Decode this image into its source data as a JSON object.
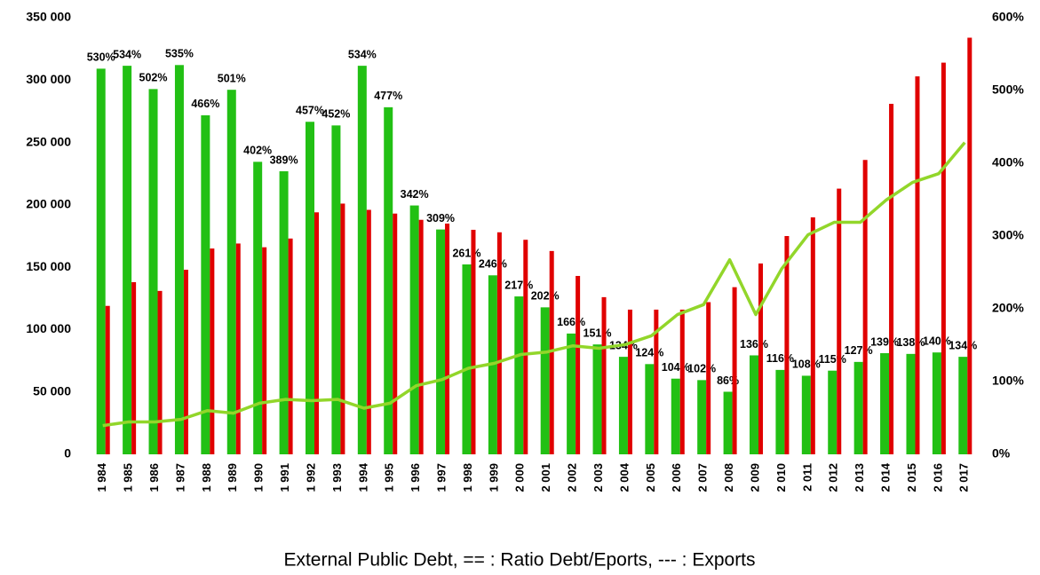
{
  "chart_data": {
    "type": "combo",
    "caption": "External Public Debt, == : Ratio Debt/Eports, --- : Exports",
    "categories": [
      "1 984",
      "1 985",
      "1 986",
      "1 987",
      "1 988",
      "1 989",
      "1 990",
      "1 991",
      "1 992",
      "1 993",
      "1 994",
      "1 995",
      "1 996",
      "1 997",
      "1 998",
      "1 999",
      "2 000",
      "2 001",
      "2 002",
      "2 003",
      "2 004",
      "2 005",
      "2 006",
      "2 007",
      "2 008",
      "2 009",
      "2 010",
      "2 011",
      "2 012",
      "2 013",
      "2 014",
      "2 015",
      "2 016",
      "2 017"
    ],
    "series": [
      {
        "name": "Ratio Debt/Eports",
        "type": "bar",
        "axis": "y2",
        "color": "#22c014",
        "values": [
          530,
          534,
          502,
          535,
          466,
          501,
          402,
          389,
          457,
          452,
          534,
          477,
          342,
          309,
          261,
          246,
          217,
          202,
          166,
          151,
          134,
          124,
          104,
          102,
          86,
          136,
          116,
          108,
          115,
          127,
          139,
          138,
          140,
          134
        ],
        "value_labels": [
          "530%",
          "534%",
          "502%",
          "535%",
          "466%",
          "501%",
          "402%",
          "389%",
          "457%",
          "452%",
          "534%",
          "477%",
          "342%",
          "309%",
          "261%",
          "246%",
          "217%",
          "202%",
          "166%",
          "151%",
          "134%",
          "124%",
          "104%",
          "102%",
          "86%",
          "136%",
          "116%",
          "108%",
          "115%",
          "127%",
          "139%",
          "138%",
          "140%",
          "134%"
        ]
      },
      {
        "name": "External Public Debt",
        "type": "bar",
        "color": "#e00000",
        "values": [
          119000,
          138000,
          131000,
          148000,
          165000,
          169000,
          166000,
          173000,
          194000,
          201000,
          196000,
          193000,
          188000,
          185000,
          180000,
          178000,
          172000,
          163000,
          143000,
          126000,
          116000,
          116000,
          116000,
          122000,
          134000,
          153000,
          175000,
          190000,
          213000,
          236000,
          281000,
          303000,
          314000,
          334000
        ]
      },
      {
        "name": "Exports",
        "type": "line",
        "color": "#92d62a",
        "values": [
          23000,
          26000,
          26000,
          28000,
          35000,
          33000,
          41000,
          44000,
          43000,
          44000,
          37000,
          41000,
          55000,
          60000,
          69000,
          73000,
          80000,
          82000,
          87000,
          85000,
          88000,
          95000,
          112000,
          120000,
          156000,
          112000,
          149000,
          176000,
          186000,
          186000,
          204000,
          218000,
          225000,
          250000
        ]
      }
    ],
    "ylim": [
      0,
      350000
    ],
    "yticks": [
      {
        "value": 0,
        "label": "0"
      },
      {
        "value": 50000,
        "label": "50 000"
      },
      {
        "value": 100000,
        "label": "100 000"
      },
      {
        "value": 150000,
        "label": "150 000"
      },
      {
        "value": 200000,
        "label": "200 000"
      },
      {
        "value": 250000,
        "label": "250 000"
      },
      {
        "value": 300000,
        "label": "300 000"
      },
      {
        "value": 350000,
        "label": "350 000"
      }
    ],
    "y2lim": [
      0,
      600
    ],
    "y2ticks": [
      {
        "value": 0,
        "label": "0%"
      },
      {
        "value": 100,
        "label": "100%"
      },
      {
        "value": 200,
        "label": "200%"
      },
      {
        "value": 300,
        "label": "300%"
      },
      {
        "value": 400,
        "label": "400%"
      },
      {
        "value": 500,
        "label": "500%"
      },
      {
        "value": 600,
        "label": "600%"
      }
    ]
  }
}
